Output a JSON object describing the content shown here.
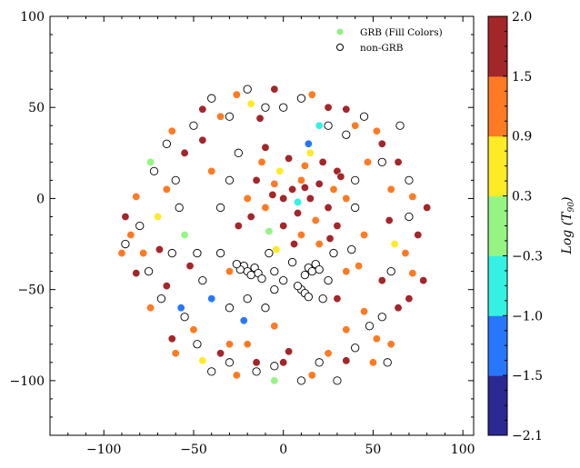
{
  "chart_data": {
    "type": "scatter",
    "title": "",
    "xlabel": "",
    "ylabel": "",
    "xlim": [
      -130,
      106
    ],
    "ylim": [
      -130,
      100
    ],
    "xticks": [
      -100,
      -50,
      0,
      50,
      100
    ],
    "yticks": [
      -100,
      -50,
      0,
      50,
      100
    ],
    "grid": false,
    "legend": {
      "placement": "top-right",
      "entries": [
        {
          "label": "GRB (Fill Colors)",
          "marker": "filled",
          "color": "#90f07f"
        },
        {
          "label": "non-GRB",
          "marker": "hollow",
          "color": "#000000"
        }
      ]
    },
    "colorbar": {
      "label_prefix": "Log (",
      "label_var": "T",
      "label_sub": "90",
      "label_suffix": ")",
      "boundaries": [
        -2.1,
        -1.5,
        -1.0,
        -0.3,
        0.3,
        0.9,
        1.5,
        2.0
      ],
      "tick_labels": [
        "−2.1",
        "−1.5",
        "−1.0",
        "−0.3",
        "0.3",
        "0.9",
        "1.5",
        "2.0"
      ],
      "colors": [
        "#2b2a93",
        "#2877fb",
        "#33f2e3",
        "#95f583",
        "#fdeb26",
        "#fe7a23",
        "#a3262a"
      ]
    },
    "series": [
      {
        "name": "GRB (Fill Colors)",
        "points_xy_logT90": [
          [
            75,
            -20,
            1.8
          ],
          [
            72,
            1,
            1.2
          ],
          [
            64,
            20,
            1.8
          ],
          [
            52,
            37,
            1.2
          ],
          [
            35,
            49,
            1.8
          ],
          [
            16,
            57,
            1.2
          ],
          [
            -5,
            60,
            1.8
          ],
          [
            -26,
            57,
            1.2
          ],
          [
            -45,
            49,
            1.8
          ],
          [
            -62,
            37,
            1.2
          ],
          [
            -74,
            20,
            0.0
          ],
          [
            -82,
            1,
            1.2
          ],
          [
            -85,
            -20,
            1.2
          ],
          [
            -82,
            -41,
            1.8
          ],
          [
            -74,
            -60,
            1.2
          ],
          [
            -62,
            -77,
            1.8
          ],
          [
            -45,
            -89,
            0.6
          ],
          [
            -26,
            -97,
            1.2
          ],
          [
            -5,
            -100,
            0.0
          ],
          [
            16,
            -97,
            1.2
          ],
          [
            35,
            -89,
            1.8
          ],
          [
            52,
            -77,
            1.2
          ],
          [
            64,
            -60,
            1.8
          ],
          [
            72,
            -41,
            1.2
          ],
          [
            59,
            -12,
            1.8
          ],
          [
            47,
            20,
            1.2
          ],
          [
            20,
            40,
            -0.6
          ],
          [
            -13,
            44,
            1.8
          ],
          [
            -45,
            32,
            1.8
          ],
          [
            -65,
            5,
            1.2
          ],
          [
            -69,
            -28,
            1.8
          ],
          [
            -57,
            -60,
            -1.2
          ],
          [
            -30,
            -80,
            1.2
          ],
          [
            3,
            -84,
            1.8
          ],
          [
            35,
            -72,
            1.2
          ],
          [
            55,
            -45,
            1.8
          ],
          [
            45,
            -20,
            1.2
          ],
          [
            30,
            15,
            1.8
          ],
          [
            -40,
            15,
            1.2
          ],
          [
            -55,
            -20,
            0.0
          ],
          [
            -40,
            -55,
            -1.2
          ],
          [
            -5,
            -70,
            1.2
          ],
          [
            30,
            -55,
            1.8
          ],
          [
            -52,
            -37,
            1.8
          ],
          [
            -22,
            -67,
            -1.2
          ],
          [
            42,
            -37,
            1.2
          ],
          [
            80,
            -5,
            1.8
          ],
          [
            68,
            -30,
            1.2
          ],
          [
            60,
            5,
            1.2
          ],
          [
            55,
            30,
            1.8
          ],
          [
            40,
            40,
            1.2
          ],
          [
            25,
            50,
            1.8
          ],
          [
            -18,
            52,
            0.6
          ],
          [
            -35,
            45,
            1.2
          ],
          [
            -55,
            25,
            1.8
          ],
          [
            -70,
            -10,
            0.6
          ],
          [
            -78,
            -30,
            1.2
          ],
          [
            -65,
            -48,
            1.8
          ],
          [
            -50,
            -72,
            1.2
          ],
          [
            -15,
            -90,
            1.8
          ],
          [
            25,
            -85,
            1.2
          ],
          [
            45,
            -62,
            1.2
          ],
          [
            62,
            -25,
            0.6
          ],
          [
            70,
            -55,
            1.8
          ],
          [
            5,
            5,
            1.8
          ],
          [
            10,
            10,
            1.2
          ],
          [
            0,
            0,
            1.8
          ],
          [
            -5,
            8,
            1.2
          ],
          [
            15,
            0,
            1.8
          ],
          [
            20,
            8,
            1.8
          ],
          [
            -10,
            -5,
            1.2
          ],
          [
            8,
            -8,
            1.8
          ],
          [
            12,
            18,
            1.2
          ],
          [
            -2,
            15,
            0.6
          ],
          [
            25,
            -5,
            1.8
          ],
          [
            -15,
            10,
            1.8
          ],
          [
            18,
            -12,
            1.2
          ],
          [
            0,
            -15,
            1.8
          ],
          [
            -8,
            -18,
            0.0
          ],
          [
            22,
            20,
            1.8
          ],
          [
            28,
            5,
            1.2
          ],
          [
            -18,
            -10,
            1.8
          ],
          [
            3,
            22,
            1.8
          ],
          [
            10,
            -20,
            1.2
          ],
          [
            -12,
            20,
            1.2
          ],
          [
            30,
            -15,
            1.8
          ],
          [
            -20,
            0,
            1.2
          ],
          [
            15,
            25,
            0.6
          ],
          [
            6,
            -25,
            1.8
          ],
          [
            -4,
            -28,
            0.6
          ],
          [
            14,
            30,
            -1.2
          ],
          [
            32,
            12,
            1.8
          ],
          [
            -25,
            -15,
            1.8
          ],
          [
            20,
            -25,
            1.2
          ],
          [
            -10,
            28,
            1.8
          ],
          [
            35,
            0,
            1.2
          ],
          [
            8,
            -2,
            -0.6
          ],
          [
            -6,
            2,
            1.8
          ],
          [
            26,
            -22,
            1.8
          ],
          [
            12,
            6,
            1.8
          ],
          [
            -30,
            -40,
            1.2
          ],
          [
            -35,
            -85,
            1.8
          ],
          [
            50,
            -90,
            1.2
          ],
          [
            -60,
            -85,
            1.2
          ],
          [
            78,
            -45,
            1.8
          ],
          [
            -88,
            -10,
            1.8
          ],
          [
            -90,
            -30,
            1.2
          ],
          [
            0,
            -90,
            1.8
          ],
          [
            60,
            -80,
            1.2
          ],
          [
            -20,
            -80,
            1.2
          ],
          [
            35,
            -40,
            1.2
          ]
        ]
      },
      {
        "name": "non-GRB",
        "points_xy": [
          [
            -65,
            30
          ],
          [
            -72,
            15
          ],
          [
            -80,
            -15
          ],
          [
            -88,
            -25
          ],
          [
            -75,
            -40
          ],
          [
            -68,
            -55
          ],
          [
            -55,
            -65
          ],
          [
            -48,
            -80
          ],
          [
            -40,
            -95
          ],
          [
            -30,
            -90
          ],
          [
            -15,
            -95
          ],
          [
            -5,
            -92
          ],
          [
            10,
            -100
          ],
          [
            20,
            -90
          ],
          [
            30,
            -100
          ],
          [
            40,
            -82
          ],
          [
            48,
            -70
          ],
          [
            58,
            -90
          ],
          [
            -60,
            10
          ],
          [
            -58,
            -5
          ],
          [
            -62,
            -30
          ],
          [
            -45,
            -45
          ],
          [
            -48,
            -30
          ],
          [
            -35,
            -30
          ],
          [
            -30,
            -60
          ],
          [
            -20,
            -55
          ],
          [
            -10,
            -60
          ],
          [
            -5,
            -50
          ],
          [
            -50,
            40
          ],
          [
            -40,
            55
          ],
          [
            -30,
            45
          ],
          [
            -20,
            60
          ],
          [
            -10,
            50
          ],
          [
            0,
            50
          ],
          [
            10,
            55
          ],
          [
            25,
            40
          ],
          [
            35,
            35
          ],
          [
            45,
            45
          ],
          [
            55,
            20
          ],
          [
            65,
            40
          ],
          [
            70,
            10
          ],
          [
            70,
            -10
          ],
          [
            60,
            -40
          ],
          [
            55,
            -65
          ],
          [
            -25,
            25
          ],
          [
            -30,
            10
          ],
          [
            -35,
            -5
          ],
          [
            40,
            10
          ],
          [
            40,
            -5
          ],
          [
            38,
            -28
          ],
          [
            -22,
            -37
          ],
          [
            -20,
            -40
          ],
          [
            -18,
            -42
          ],
          [
            -24,
            -39
          ],
          [
            -16,
            -38
          ],
          [
            -26,
            -36
          ],
          [
            -14,
            -41
          ],
          [
            -12,
            -44
          ],
          [
            14,
            -38
          ],
          [
            16,
            -40
          ],
          [
            18,
            -36
          ],
          [
            12,
            -42
          ],
          [
            20,
            -39
          ],
          [
            10,
            -50
          ],
          [
            12,
            -52
          ],
          [
            8,
            -48
          ],
          [
            14,
            -54
          ],
          [
            -5,
            -40
          ],
          [
            0,
            -45
          ],
          [
            25,
            -45
          ],
          [
            22,
            -55
          ],
          [
            -8,
            -30
          ],
          [
            5,
            -35
          ],
          [
            28,
            -30
          ]
        ]
      }
    ]
  }
}
